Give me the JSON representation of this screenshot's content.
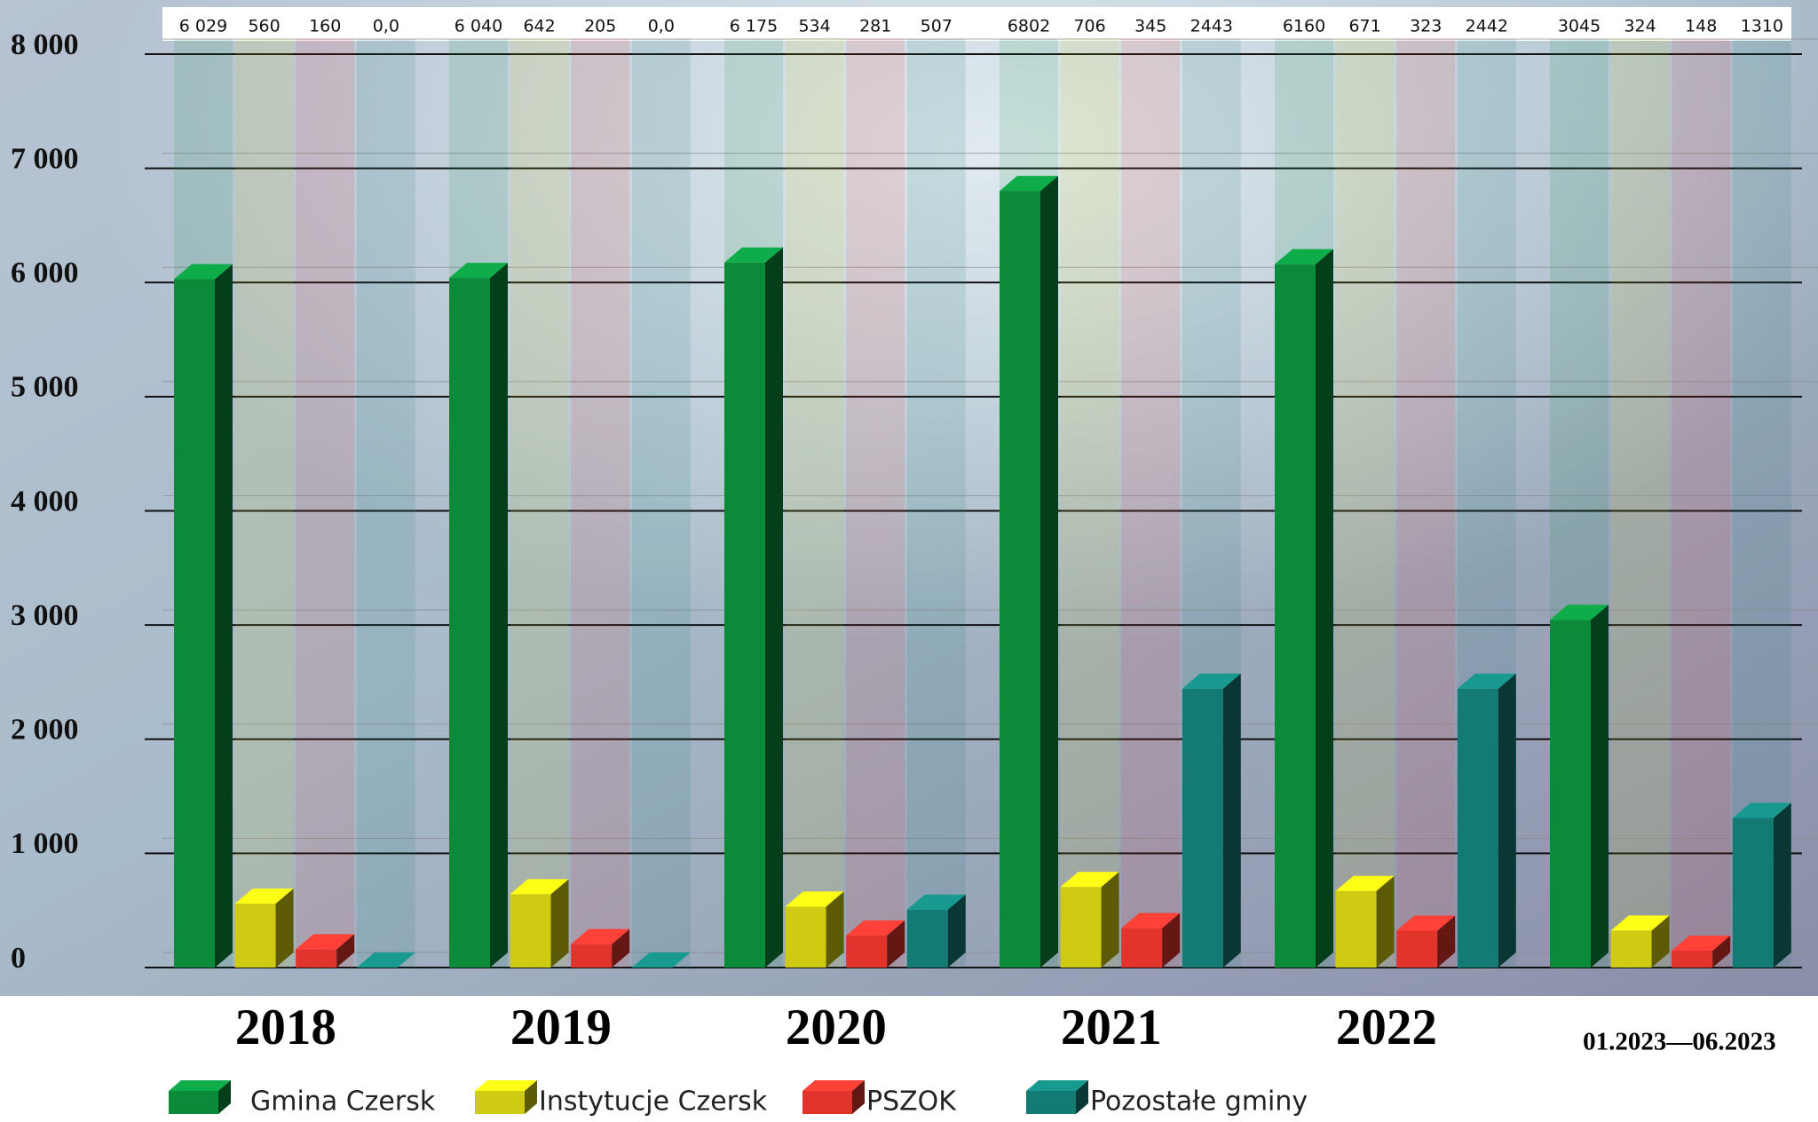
{
  "chart_data": {
    "type": "bar3d",
    "categories": [
      "2018",
      "2019",
      "2020",
      "2021",
      "2022",
      "01.2023—06.2023"
    ],
    "series": [
      {
        "name": "Gmina Czersk",
        "color": "#0b8a3a",
        "values": [
          6029,
          6040,
          6175,
          6802,
          6160,
          3045
        ],
        "value_labels": [
          "6 029",
          "6 040",
          "6 175",
          "6802",
          "6160",
          "3045"
        ]
      },
      {
        "name": "Instytucje Czersk",
        "color": "#cfcb12",
        "values": [
          560,
          642,
          534,
          706,
          671,
          324
        ],
        "value_labels": [
          "560",
          "642",
          "534",
          "706",
          "671",
          "324"
        ]
      },
      {
        "name": "PSZOK",
        "color": "#e0342c",
        "values": [
          160,
          205,
          281,
          345,
          323,
          148
        ],
        "value_labels": [
          "160",
          "205",
          "281",
          "345",
          "323",
          "148"
        ]
      },
      {
        "name": "Pozostałe gminy",
        "color": "#147b74",
        "values": [
          0,
          0,
          507,
          2443,
          2442,
          1310
        ],
        "value_labels": [
          "0,0",
          "0,0",
          "507",
          "2443",
          "2442",
          "1310"
        ]
      }
    ],
    "ylim": [
      0,
      8000
    ],
    "yticks": [
      0,
      {
        "value": 1000,
        "label": "1 000"
      },
      {
        "value": 2000,
        "label": "2 000"
      },
      {
        "value": 3000,
        "label": "3 000"
      },
      {
        "value": 4000,
        "label": "4 000"
      },
      {
        "value": 5000,
        "label": "5 000"
      },
      {
        "value": 6000,
        "label": "6 000"
      },
      {
        "value": 7000,
        "label": "7 000"
      },
      {
        "value": 8000,
        "label": "8 000"
      }
    ],
    "grid": true,
    "legend": "bottom"
  }
}
